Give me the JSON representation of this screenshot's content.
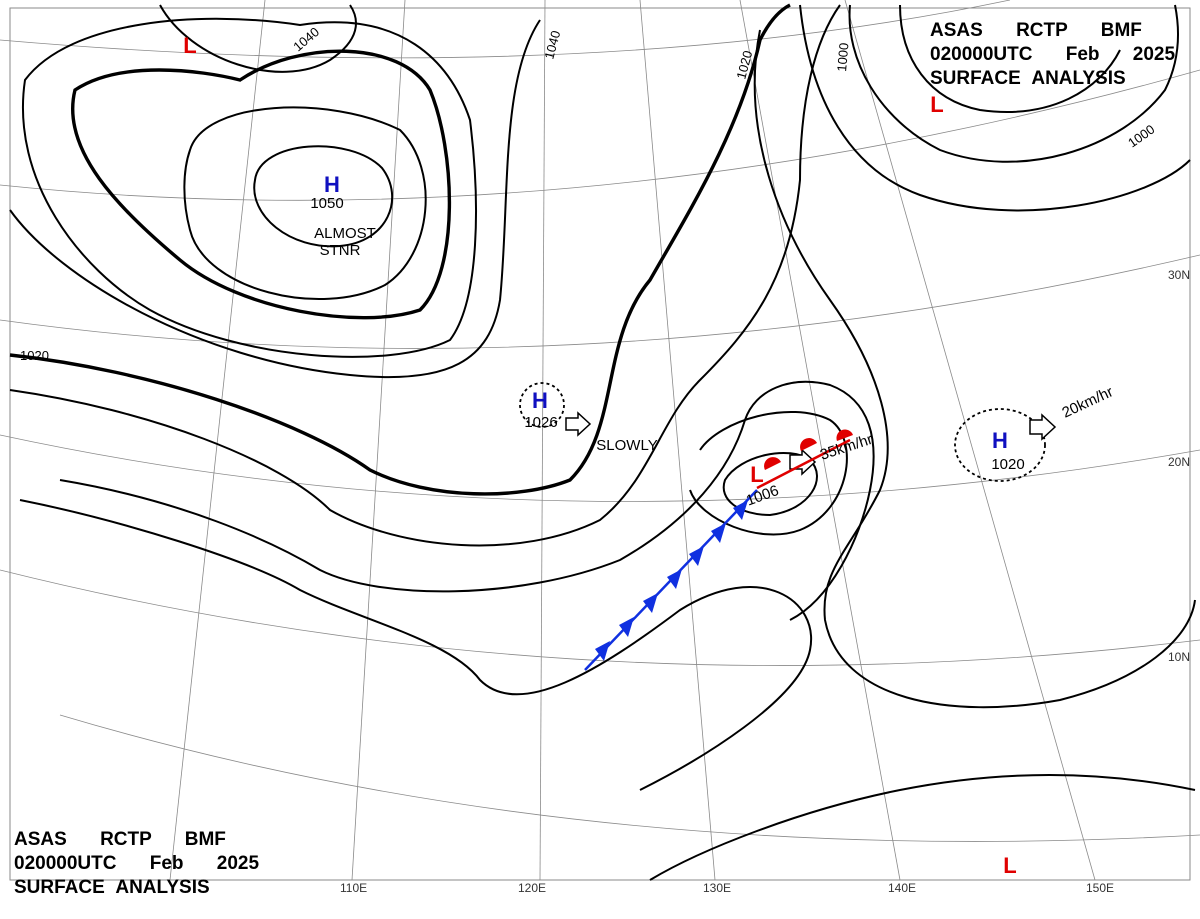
{
  "header": {
    "lines": [
      "ASAS RCTP BMF",
      "020000UTC Feb 2025",
      "SURFACE ANALYSIS"
    ]
  },
  "footer": {
    "lines": [
      "ASAS RCTP BMF",
      "020000UTC Feb 2025",
      "SURFACE ANALYSIS"
    ]
  },
  "centers": [
    {
      "type": "H",
      "pressure": 1050
    },
    {
      "type": "H",
      "pressure": 1026
    },
    {
      "type": "H",
      "pressure": 1020
    },
    {
      "type": "L",
      "pressure": 1006
    },
    {
      "type": "L"
    },
    {
      "type": "L"
    },
    {
      "type": "L"
    }
  ],
  "annotations": [
    "ALMOST",
    "STNR",
    "SLOWLY",
    "35km/hr",
    "20km/hr"
  ],
  "isobar_labels": [
    1040,
    1040,
    1020,
    1000,
    1000,
    1020
  ],
  "latitude_labels": [
    "30N",
    "20N",
    "10N"
  ],
  "longitude_labels": [
    "110E",
    "120E",
    "130E",
    "140E",
    "150E"
  ]
}
